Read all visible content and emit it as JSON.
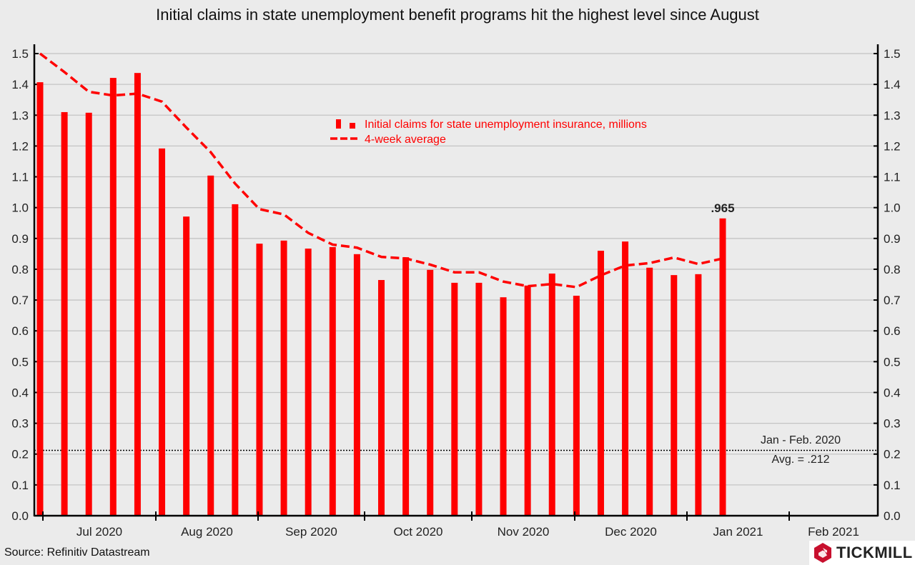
{
  "chart_data": {
    "type": "bar",
    "title": "Initial claims in state unemployment benefit programs hit the highest level since August",
    "x_unit": "weekly",
    "month_tick_labels": [
      "Jul 2020",
      "Aug 2020",
      "Sep 2020",
      "Oct 2020",
      "Nov 2020",
      "Dec 2020",
      "Jan 2021",
      "Feb 2021"
    ],
    "ylim": [
      0,
      1.5
    ],
    "yticks": [
      "0.0",
      "0.1",
      "0.2",
      "0.3",
      "0.4",
      "0.5",
      "0.6",
      "0.7",
      "0.8",
      "0.9",
      "1.0",
      "1.1",
      "1.2",
      "1.3",
      "1.4",
      "1.5"
    ],
    "grid": true,
    "legend_position": "top-center",
    "series": [
      {
        "name": "Initial claims for state unemployment insurance,  millions",
        "type": "bar",
        "color": "#ff0000",
        "values": [
          1.407,
          1.31,
          1.308,
          1.421,
          1.437,
          1.192,
          0.971,
          1.104,
          1.011,
          0.883,
          0.893,
          0.867,
          0.872,
          0.849,
          0.765,
          0.839,
          0.798,
          0.756,
          0.756,
          0.709,
          0.747,
          0.786,
          0.714,
          0.86,
          0.89,
          0.805,
          0.781,
          0.784,
          0.965
        ]
      },
      {
        "name": "4-week average",
        "type": "line",
        "style": "dashed",
        "color": "#ff0000",
        "values": [
          1.5,
          1.44,
          1.376,
          1.364,
          1.37,
          1.344,
          1.26,
          1.18,
          1.078,
          0.995,
          0.978,
          0.918,
          0.88,
          0.87,
          0.84,
          0.835,
          0.815,
          0.79,
          0.79,
          0.76,
          0.745,
          0.752,
          0.742,
          0.78,
          0.812,
          0.82,
          0.838,
          0.817,
          0.835
        ]
      }
    ],
    "reference_line": {
      "value": 0.212,
      "style": "dotted",
      "label_line1": "Jan - Feb. 2020",
      "label_line2": "Avg. = .212"
    },
    "annotation": ".965",
    "source": "Source: Refinitiv Datastream",
    "logo": "TICKMILL"
  }
}
